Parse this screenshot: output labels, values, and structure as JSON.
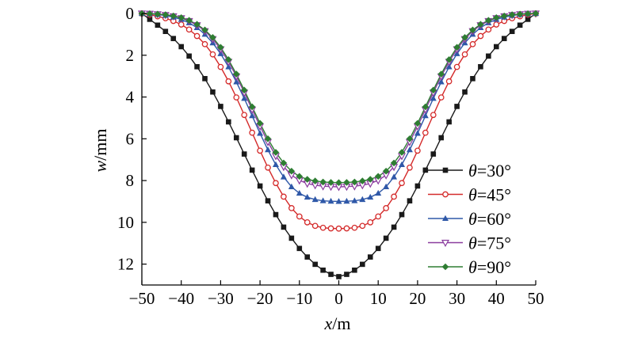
{
  "chart_data": {
    "type": "line",
    "xlabel_var": "x",
    "xlabel_unit": "/m",
    "ylabel_var": "w",
    "ylabel_unit": "/mm",
    "xlim": [
      -50,
      50
    ],
    "ylim": [
      0,
      13
    ],
    "y_inverted": true,
    "xticks": [
      -50,
      -40,
      -30,
      -20,
      -10,
      0,
      10,
      20,
      30,
      40,
      50
    ],
    "yticks": [
      0,
      2,
      4,
      6,
      8,
      10,
      12
    ],
    "grid": false,
    "legend_position": "center-right",
    "series": [
      {
        "symbol": "θ",
        "value": "=30°",
        "color": "#1a1a1a",
        "marker": "square",
        "max": 12.6,
        "width": 22.86,
        "x": [
          -50,
          -48,
          -46,
          -44,
          -42,
          -40,
          -38,
          -36,
          -34,
          -32,
          -30,
          -28,
          -26,
          -24,
          -22,
          -20,
          -18,
          -16,
          -14,
          -12,
          -10,
          -8,
          -6,
          -4,
          -2,
          0,
          2,
          4,
          6,
          8,
          10,
          12,
          14,
          16,
          18,
          20,
          22,
          24,
          26,
          28,
          30,
          32,
          34,
          36,
          38,
          40,
          42,
          44,
          46,
          48,
          50
        ],
        "values": [
          0.0,
          0.28,
          0.56,
          0.86,
          1.2,
          1.59,
          2.04,
          2.55,
          3.12,
          3.76,
          4.45,
          5.19,
          5.95,
          6.73,
          7.5,
          8.26,
          8.97,
          9.63,
          10.23,
          10.76,
          11.25,
          11.66,
          12.01,
          12.29,
          12.49,
          12.6,
          12.49,
          12.29,
          12.01,
          11.66,
          11.25,
          10.76,
          10.23,
          9.63,
          8.97,
          8.26,
          7.5,
          6.73,
          5.95,
          5.19,
          4.45,
          3.76,
          3.12,
          2.55,
          2.04,
          1.59,
          1.2,
          0.86,
          0.56,
          0.28,
          0.0
        ]
      },
      {
        "symbol": "θ",
        "value": "=45°",
        "color": "#d42a2a",
        "marker": "circle-open",
        "max": 10.3,
        "width": 18.29,
        "x": [
          -50,
          -48,
          -46,
          -44,
          -42,
          -40,
          -38,
          -36,
          -34,
          -32,
          -30,
          -28,
          -26,
          -24,
          -22,
          -20,
          -18,
          -16,
          -14,
          -12,
          -10,
          -8,
          -6,
          -4,
          -2,
          0,
          2,
          4,
          6,
          8,
          10,
          12,
          14,
          16,
          18,
          20,
          22,
          24,
          26,
          28,
          30,
          32,
          34,
          36,
          38,
          40,
          42,
          44,
          46,
          48,
          50
        ],
        "values": [
          0.0,
          0.06,
          0.14,
          0.23,
          0.36,
          0.53,
          0.77,
          1.08,
          1.47,
          1.96,
          2.56,
          3.25,
          4.02,
          4.86,
          5.71,
          6.57,
          7.38,
          8.12,
          8.77,
          9.32,
          9.72,
          10.0,
          10.17,
          10.26,
          10.29,
          10.3,
          10.29,
          10.26,
          10.17,
          10.0,
          9.72,
          9.32,
          8.77,
          8.12,
          7.38,
          6.57,
          5.71,
          4.86,
          4.02,
          3.25,
          2.56,
          1.96,
          1.47,
          1.08,
          0.77,
          0.53,
          0.36,
          0.23,
          0.14,
          0.06,
          0.0
        ]
      },
      {
        "symbol": "θ",
        "value": "=60°",
        "color": "#2f58a8",
        "marker": "triangle-up",
        "max": 9.0,
        "width": 15.84,
        "x": [
          -50,
          -48,
          -46,
          -44,
          -42,
          -40,
          -38,
          -36,
          -34,
          -32,
          -30,
          -28,
          -26,
          -24,
          -22,
          -20,
          -18,
          -16,
          -14,
          -12,
          -10,
          -8,
          -6,
          -4,
          -2,
          0,
          2,
          4,
          6,
          8,
          10,
          12,
          14,
          16,
          18,
          20,
          22,
          24,
          26,
          28,
          30,
          32,
          34,
          36,
          38,
          40,
          42,
          44,
          46,
          48,
          50
        ],
        "values": [
          0.0,
          0.02,
          0.05,
          0.1,
          0.18,
          0.29,
          0.45,
          0.68,
          1.0,
          1.41,
          1.93,
          2.56,
          3.28,
          4.07,
          4.9,
          5.74,
          6.53,
          7.24,
          7.83,
          8.3,
          8.61,
          8.8,
          8.91,
          8.97,
          8.99,
          9.0,
          8.99,
          8.97,
          8.91,
          8.8,
          8.61,
          8.3,
          7.83,
          7.24,
          6.53,
          5.74,
          4.9,
          4.07,
          3.28,
          2.56,
          1.93,
          1.41,
          1.0,
          0.68,
          0.45,
          0.29,
          0.18,
          0.1,
          0.05,
          0.02,
          0.0
        ]
      },
      {
        "symbol": "θ",
        "value": "=75°",
        "color": "#8a3c9e",
        "marker": "triangle-down-open",
        "max": 8.3,
        "width": 14.55,
        "x": [
          -50,
          -48,
          -46,
          -44,
          -42,
          -40,
          -38,
          -36,
          -34,
          -32,
          -30,
          -28,
          -26,
          -24,
          -22,
          -20,
          -18,
          -16,
          -14,
          -12,
          -10,
          -8,
          -6,
          -4,
          -2,
          0,
          2,
          4,
          6,
          8,
          10,
          12,
          14,
          16,
          18,
          20,
          22,
          24,
          26,
          28,
          30,
          32,
          34,
          36,
          38,
          40,
          42,
          44,
          46,
          48,
          50
        ],
        "values": [
          0.0,
          0.01,
          0.03,
          0.07,
          0.13,
          0.22,
          0.36,
          0.56,
          0.84,
          1.22,
          1.71,
          2.31,
          3.01,
          3.79,
          4.6,
          5.4,
          6.15,
          6.82,
          7.34,
          7.74,
          7.99,
          8.14,
          8.22,
          8.27,
          8.29,
          8.3,
          8.29,
          8.27,
          8.22,
          8.14,
          7.99,
          7.74,
          7.34,
          6.82,
          6.15,
          5.4,
          4.6,
          3.79,
          3.01,
          2.31,
          1.71,
          1.22,
          0.84,
          0.56,
          0.36,
          0.22,
          0.13,
          0.07,
          0.03,
          0.01,
          0.0
        ]
      },
      {
        "symbol": "θ",
        "value": "=90°",
        "color": "#2e7d32",
        "marker": "diamond",
        "max": 8.1,
        "width": 14.19,
        "x": [
          -50,
          -48,
          -46,
          -44,
          -42,
          -40,
          -38,
          -36,
          -34,
          -32,
          -30,
          -28,
          -26,
          -24,
          -22,
          -20,
          -18,
          -16,
          -14,
          -12,
          -10,
          -8,
          -6,
          -4,
          -2,
          0,
          2,
          4,
          6,
          8,
          10,
          12,
          14,
          16,
          18,
          20,
          22,
          24,
          26,
          28,
          30,
          32,
          34,
          36,
          38,
          40,
          42,
          44,
          46,
          48,
          50
        ],
        "values": [
          0.0,
          0.01,
          0.03,
          0.06,
          0.12,
          0.2,
          0.33,
          0.52,
          0.79,
          1.15,
          1.62,
          2.21,
          2.9,
          3.67,
          4.47,
          5.26,
          6.0,
          6.65,
          7.16,
          7.55,
          7.8,
          7.94,
          8.02,
          8.07,
          8.09,
          8.1,
          8.09,
          8.07,
          8.02,
          7.94,
          7.8,
          7.55,
          7.16,
          6.65,
          6.0,
          5.26,
          4.47,
          3.67,
          2.9,
          2.21,
          1.62,
          1.15,
          0.79,
          0.52,
          0.33,
          0.2,
          0.12,
          0.06,
          0.03,
          0.01,
          0.0
        ]
      }
    ]
  }
}
